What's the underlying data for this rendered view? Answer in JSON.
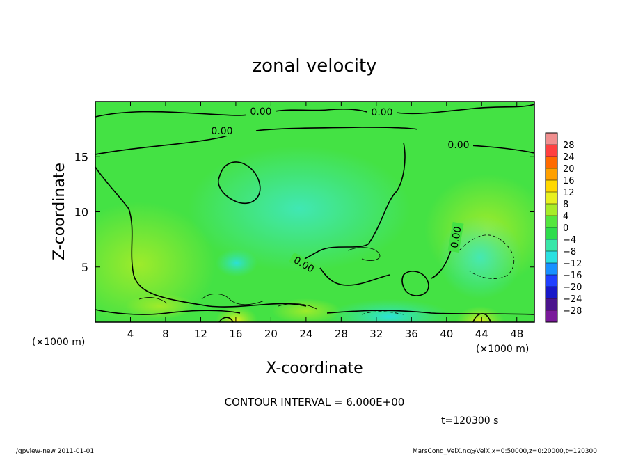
{
  "chart_data": {
    "type": "heatmap",
    "title": "zonal velocity",
    "xlabel": "X-coordinate",
    "ylabel": "Z-coordinate",
    "x_unit_left": "(×1000 m)",
    "x_unit_right": "(×1000 m)",
    "xlim": [
      0,
      50
    ],
    "ylim": [
      0,
      20
    ],
    "x_ticks": [
      4,
      8,
      12,
      16,
      20,
      24,
      28,
      32,
      36,
      40,
      44,
      48
    ],
    "y_ticks": [
      5,
      10,
      15
    ],
    "colorbar": {
      "levels": [
        28,
        24,
        20,
        16,
        12,
        8,
        4,
        0,
        -4,
        -8,
        -12,
        -16,
        -20,
        -24,
        -28
      ],
      "colors": [
        "#f08f8f",
        "#ff4040",
        "#ff6a00",
        "#ffa000",
        "#ffd800",
        "#e8f020",
        "#a8ec28",
        "#54e63e",
        "#2edc4c",
        "#38e6a8",
        "#2ae0e0",
        "#1890ff",
        "#2040ff",
        "#1818c8",
        "#4a148c",
        "#7a1a9a"
      ]
    },
    "contour_labels": [
      "0.00",
      "0.00",
      "0.00",
      "0.00",
      "0.00",
      "0.00"
    ],
    "contour_interval_text": "CONTOUR INTERVAL = 6.000E+00",
    "time_text": "t=120300 s"
  },
  "footer": {
    "left": "./gpview-new  2011-01-01",
    "right": "MarsCond_VelX.nc@VelX,x=0:50000,z=0:20000,t=120300"
  }
}
